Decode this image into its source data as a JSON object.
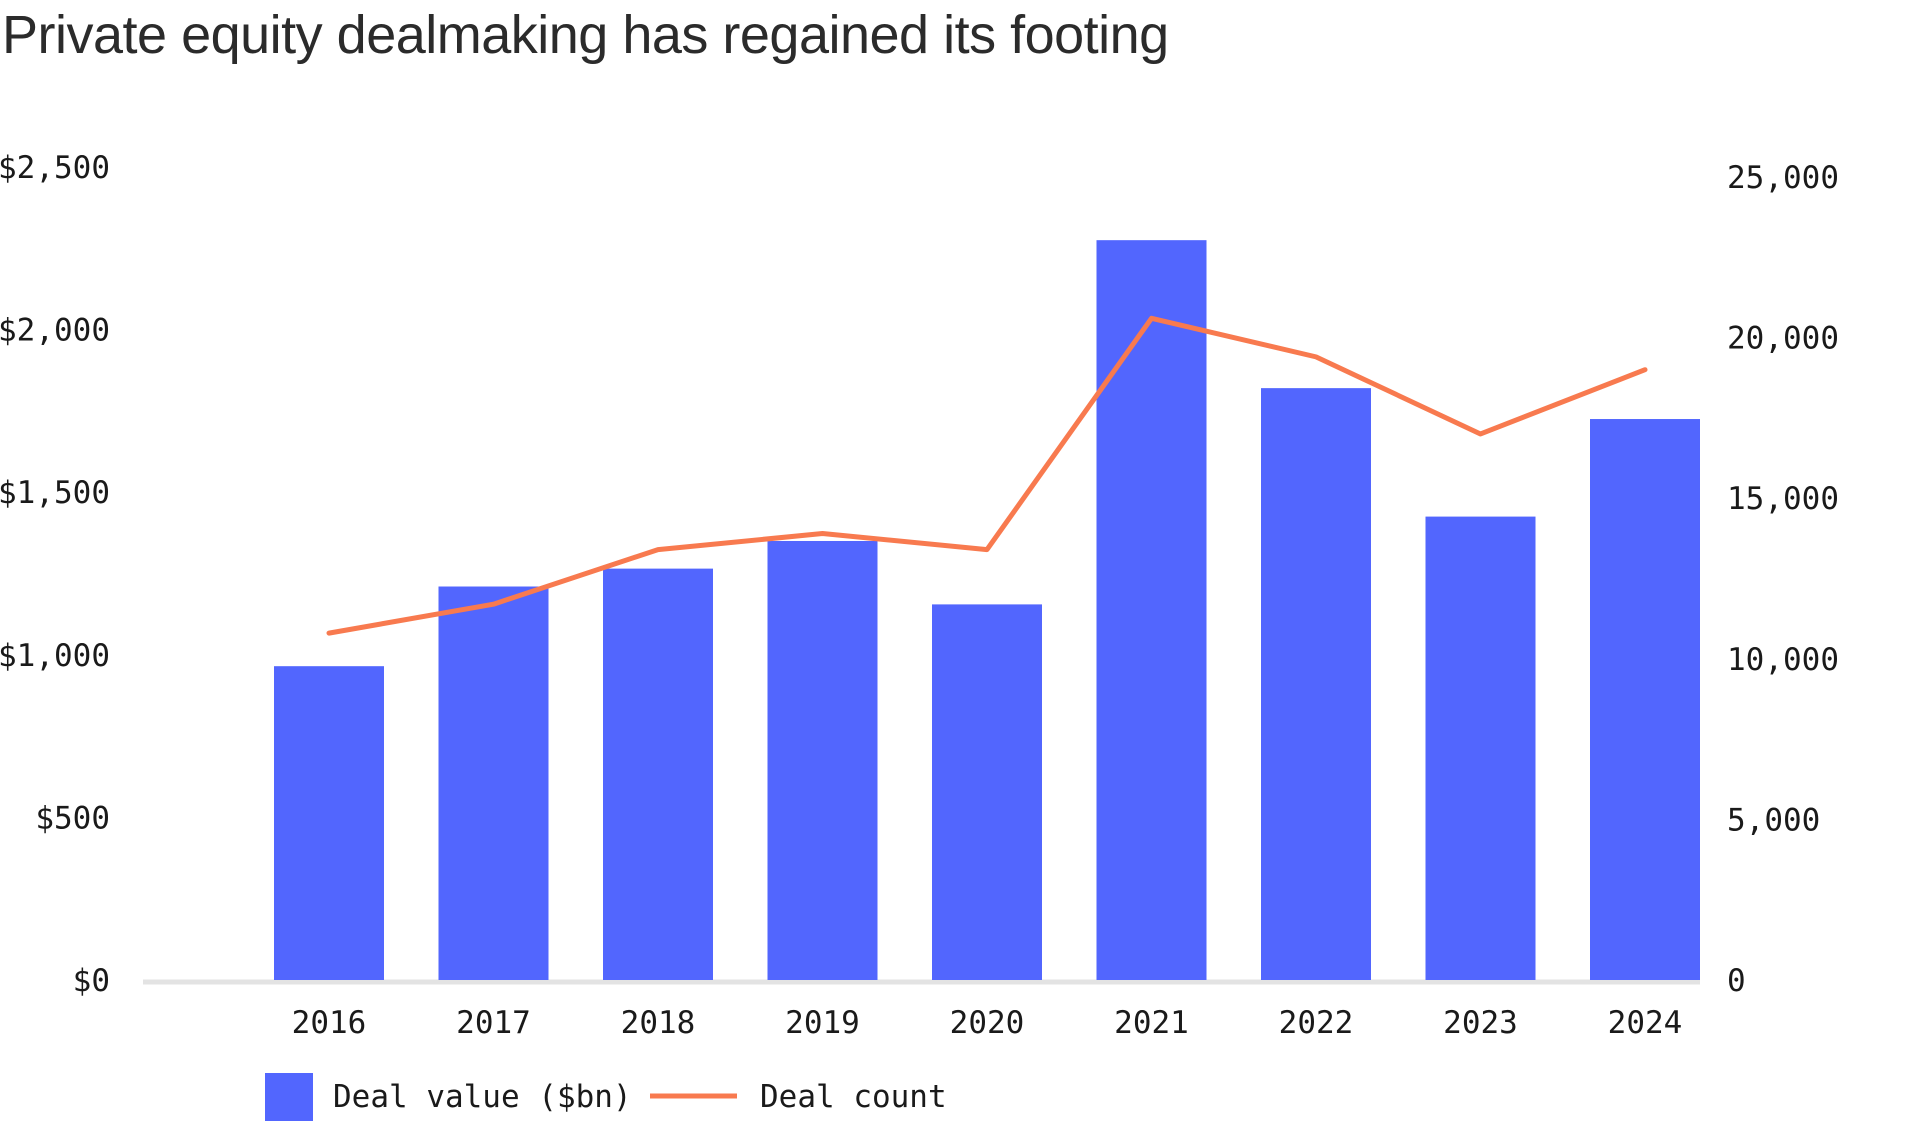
{
  "title": "Private equity dealmaking has regained its footing",
  "colors": {
    "bar": "#5266fe",
    "line": "#f87a4f",
    "baseline": "#e3e3e3",
    "text": "#1a1a1a"
  },
  "chart_data": {
    "type": "bar",
    "title": "Private equity dealmaking has regained its footing",
    "categories": [
      "2016",
      "2017",
      "2018",
      "2019",
      "2020",
      "2021",
      "2022",
      "2023",
      "2024"
    ],
    "series": [
      {
        "name": "Deal value ($bn)",
        "type": "bar",
        "axis": "left",
        "values": [
          965,
          1210,
          1265,
          1350,
          1155,
          2275,
          1820,
          1425,
          1725
        ]
      },
      {
        "name": "Deal count",
        "type": "line",
        "axis": "right",
        "values": [
          10800,
          11700,
          13400,
          13900,
          13400,
          20600,
          19400,
          17000,
          19000
        ]
      }
    ],
    "y_left": {
      "ylim": [
        0,
        2500
      ],
      "ticks": [
        0,
        500,
        1000,
        1500,
        2000,
        2500
      ],
      "tick_labels": [
        "$0",
        "$500",
        "$1,000",
        "$1,500",
        "$2,000",
        "$2,500"
      ]
    },
    "y_right": {
      "ylim": [
        0,
        25000
      ],
      "ticks": [
        0,
        5000,
        10000,
        15000,
        20000,
        25000
      ],
      "tick_labels": [
        "0",
        "5,000",
        "10,000",
        "15,000",
        "20,000",
        "25,000"
      ]
    },
    "grid": false,
    "legend": "bottom-left",
    "legend_entries": [
      "Deal value ($bn)",
      "Deal count"
    ]
  }
}
